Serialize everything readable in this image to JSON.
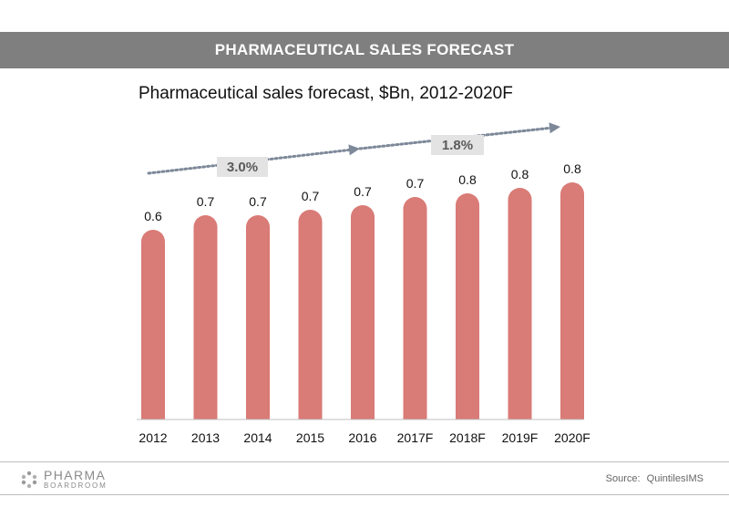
{
  "banner": {
    "title": "PHARMACEUTICAL SALES FORECAST"
  },
  "chart_data": {
    "type": "bar",
    "title": "Pharmaceutical sales forecast, $Bn, 2012-2020F",
    "categories": [
      "2012",
      "2013",
      "2014",
      "2015",
      "2016",
      "2017F",
      "2018F",
      "2019F",
      "2020F"
    ],
    "values": [
      0.6,
      0.7,
      0.7,
      0.7,
      0.7,
      0.7,
      0.8,
      0.8,
      0.8
    ],
    "data_labels": [
      "0.6",
      "0.7",
      "0.7",
      "0.7",
      "0.7",
      "0.7",
      "0.8",
      "0.8",
      "0.8"
    ],
    "bar_color": "#d97b76",
    "annotations": [
      {
        "text": "3.0%",
        "type": "growth-arrow"
      },
      {
        "text": "1.8%",
        "type": "growth-arrow"
      }
    ],
    "xlabel": "",
    "ylabel": "",
    "grid": false
  },
  "footer": {
    "logo_top": "PHARMA",
    "logo_bottom": "BOARDROOM",
    "source_label": "Source:",
    "source_value": "QuintilesIMS"
  },
  "colors": {
    "banner": "#7f7f7f",
    "bar": "#d97b76",
    "arrow": "#7d8899",
    "annotation_box": "#e3e3e3"
  }
}
